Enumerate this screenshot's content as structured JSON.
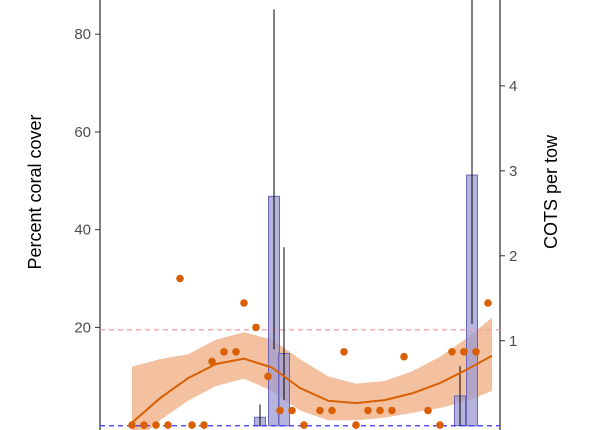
{
  "chart_data": {
    "type": "scatter",
    "y_left": {
      "label": "Percent coral cover",
      "ticks": [
        20,
        40,
        60,
        80
      ],
      "range": [
        -1,
        87
      ]
    },
    "y_right": {
      "label": "COTS per tow",
      "ticks": [
        1,
        2,
        3,
        4
      ],
      "range": [
        -0.05,
        5.01
      ]
    },
    "grid": false,
    "reference_lines": {
      "coral_cover_threshold": 19.5,
      "cots_baseline": 0
    },
    "coral_cover_points": [
      {
        "x": 0.08,
        "y": 0
      },
      {
        "x": 0.11,
        "y": 0
      },
      {
        "x": 0.14,
        "y": 0
      },
      {
        "x": 0.17,
        "y": 0
      },
      {
        "x": 0.2,
        "y": 30
      },
      {
        "x": 0.23,
        "y": 0
      },
      {
        "x": 0.26,
        "y": 0
      },
      {
        "x": 0.28,
        "y": 13
      },
      {
        "x": 0.31,
        "y": 15
      },
      {
        "x": 0.34,
        "y": 15
      },
      {
        "x": 0.36,
        "y": 25
      },
      {
        "x": 0.39,
        "y": 20
      },
      {
        "x": 0.42,
        "y": 10
      },
      {
        "x": 0.45,
        "y": 3
      },
      {
        "x": 0.48,
        "y": 3
      },
      {
        "x": 0.51,
        "y": 0
      },
      {
        "x": 0.55,
        "y": 3
      },
      {
        "x": 0.58,
        "y": 3
      },
      {
        "x": 0.61,
        "y": 15
      },
      {
        "x": 0.64,
        "y": 0
      },
      {
        "x": 0.67,
        "y": 3
      },
      {
        "x": 0.7,
        "y": 3
      },
      {
        "x": 0.73,
        "y": 3
      },
      {
        "x": 0.76,
        "y": 14
      },
      {
        "x": 0.82,
        "y": 3
      },
      {
        "x": 0.85,
        "y": 0
      },
      {
        "x": 0.88,
        "y": 15
      },
      {
        "x": 0.91,
        "y": 15
      },
      {
        "x": 0.94,
        "y": 15
      },
      {
        "x": 0.97,
        "y": 25
      }
    ],
    "smooth_trend": {
      "x": [
        0.08,
        0.15,
        0.22,
        0.29,
        0.36,
        0.43,
        0.5,
        0.57,
        0.64,
        0.71,
        0.78,
        0.85,
        0.92,
        0.98
      ],
      "y": [
        0.5,
        5.5,
        9.6,
        12.5,
        13.6,
        11.8,
        7.6,
        5,
        4.5,
        5.1,
        6.5,
        8.6,
        11.5,
        14.2
      ],
      "lower": [
        -4,
        1,
        5,
        8,
        9.5,
        7,
        3,
        1,
        1,
        1.5,
        2.5,
        3.5,
        5,
        7
      ],
      "upper": [
        12,
        13.5,
        14.5,
        17.5,
        19,
        17.5,
        13.5,
        10,
        8.5,
        9,
        11,
        14,
        18,
        22
      ]
    },
    "cots_bars": [
      {
        "x": 0.4,
        "value": 0.1,
        "err_low": 0,
        "err_high": 0.25
      },
      {
        "x": 0.435,
        "value": 2.7,
        "err_low": 0.9,
        "err_high": 4.9
      },
      {
        "x": 0.46,
        "value": 0.85,
        "err_low": 0.3,
        "err_high": 2.1
      },
      {
        "x": 0.9,
        "value": 0.35,
        "err_low": 0,
        "err_high": 0.7
      },
      {
        "x": 0.93,
        "value": 2.95,
        "err_low": 1.2,
        "err_high": 5.4
      }
    ],
    "colors": {
      "points": "#d95f02",
      "smooth_line": "#d95f02",
      "ribbon": "#f1b68f",
      "bar_fill": "#9e9ad3",
      "bar_stroke": "#6a65b4",
      "threshold_line": "#f4a3a3",
      "baseline_line": "#3333ff"
    }
  }
}
